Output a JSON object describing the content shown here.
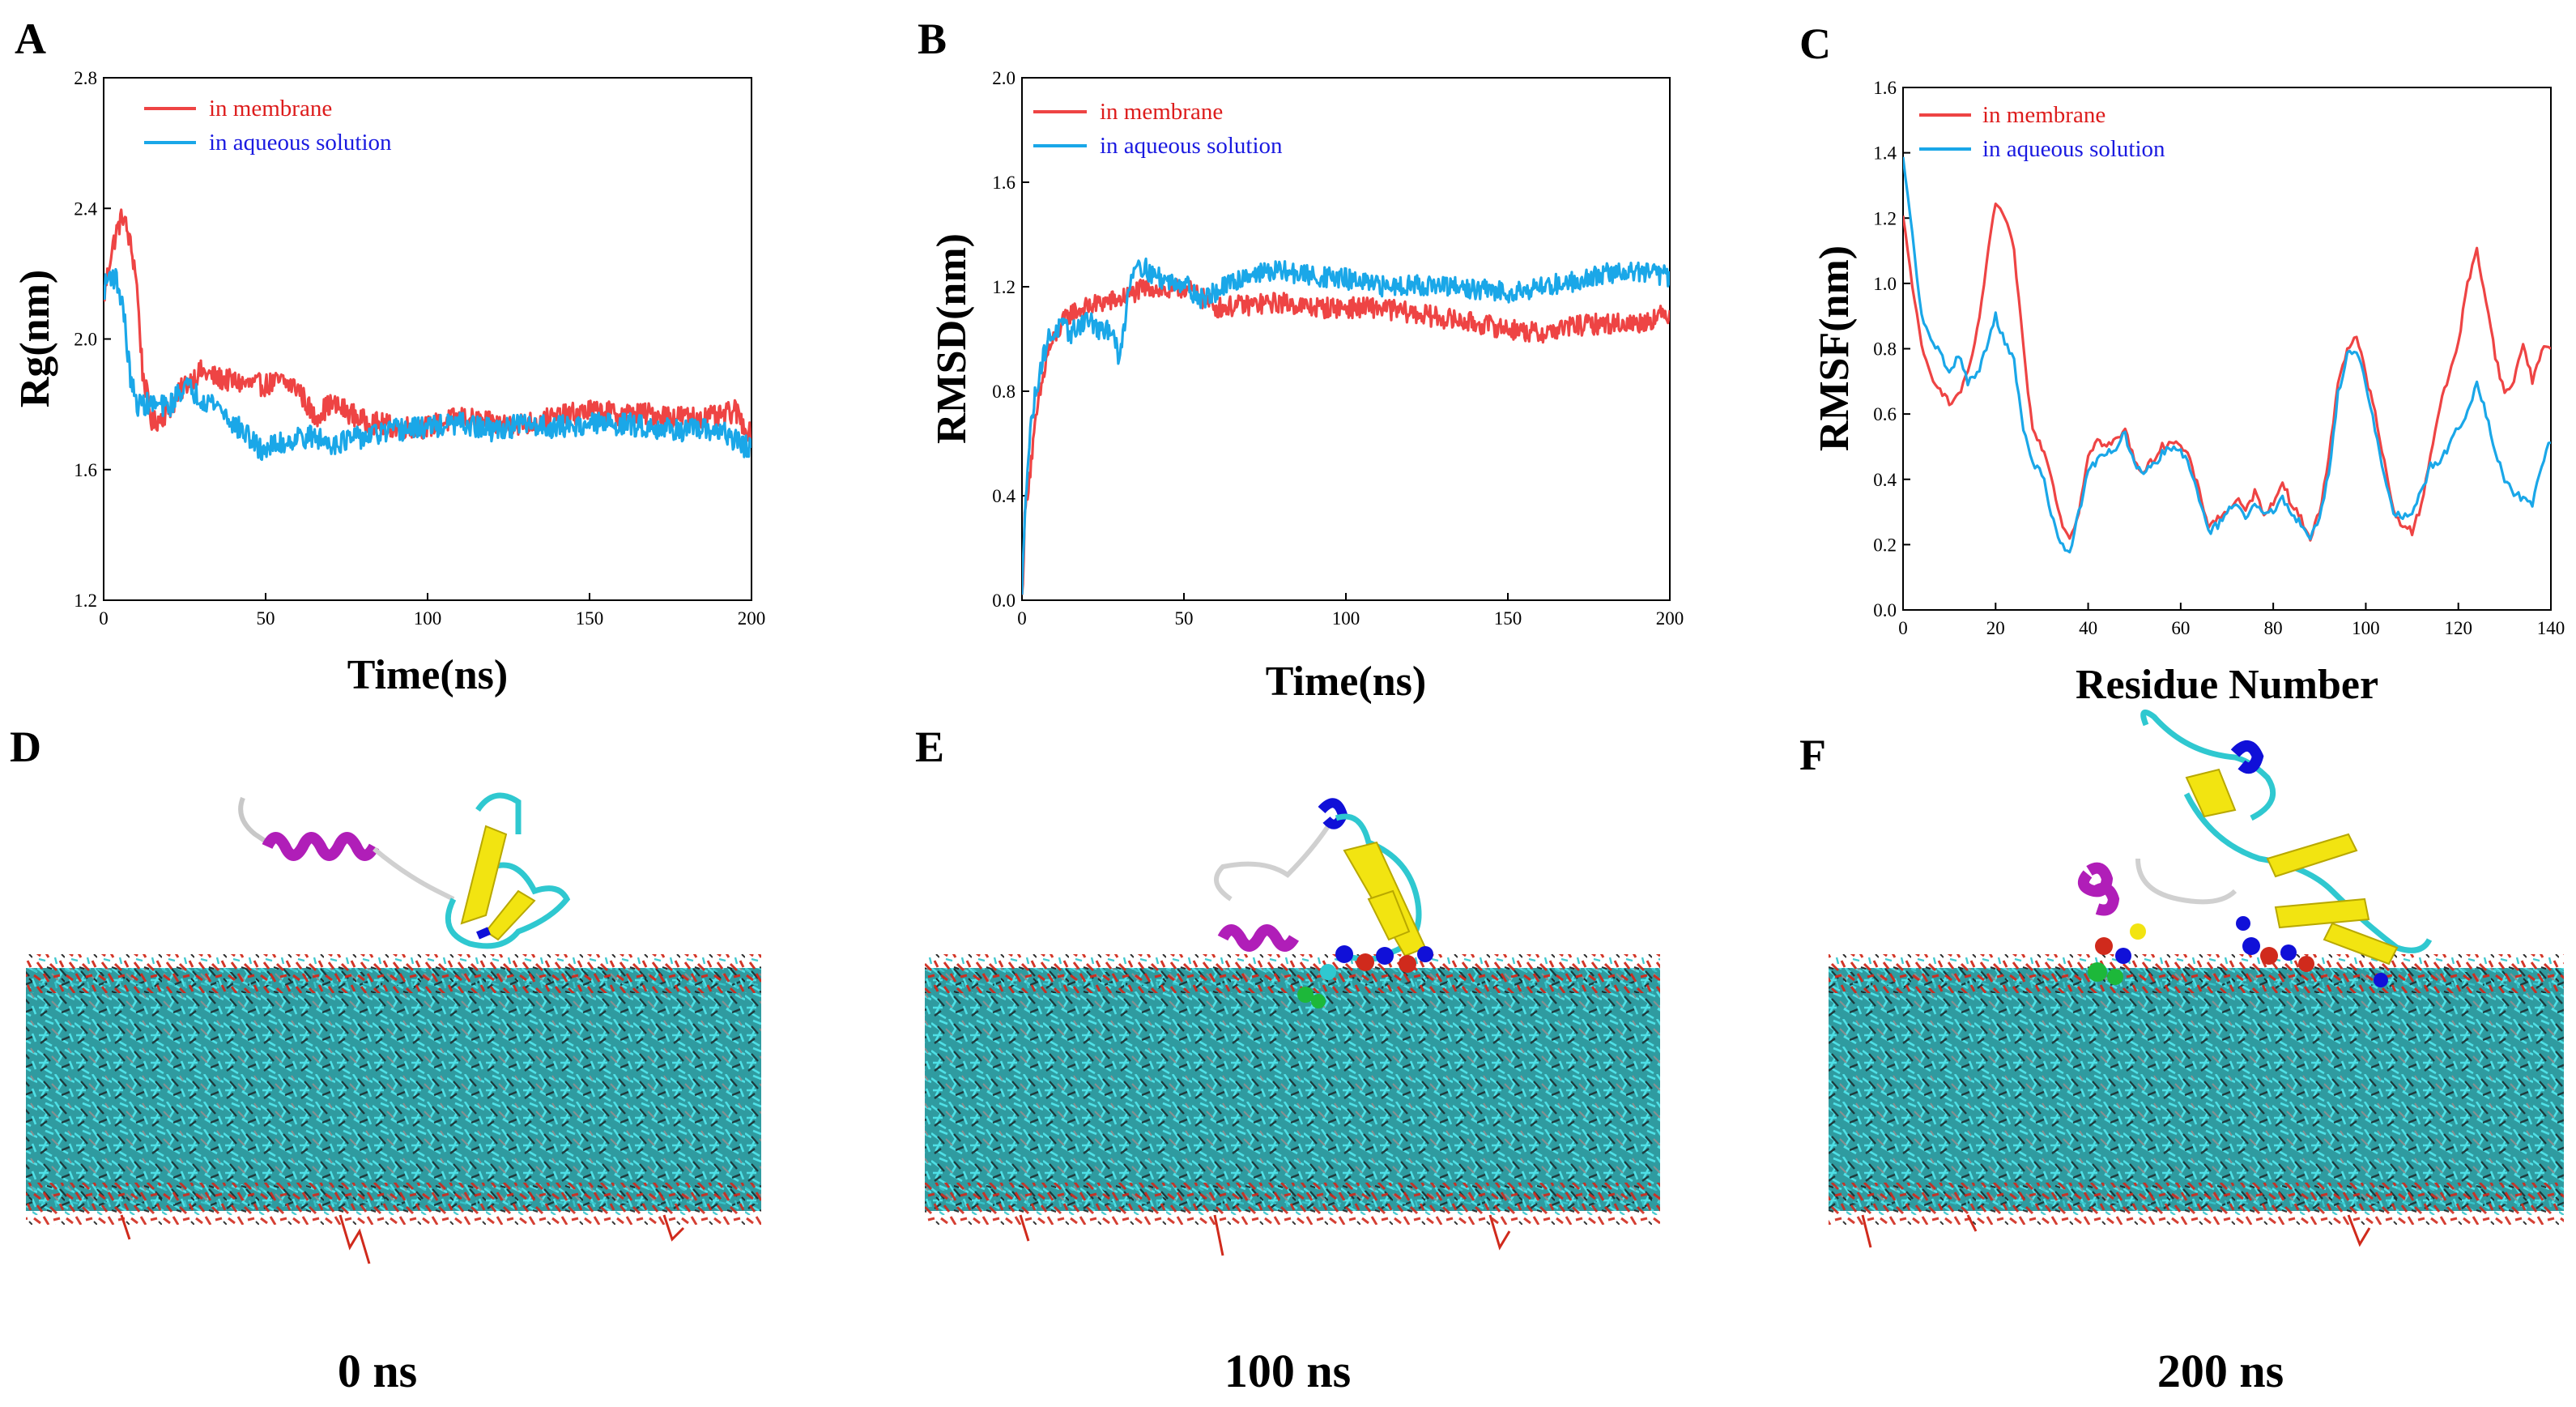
{
  "colors": {
    "membrane": "#ee4444",
    "aqueous": "#1aa7e8",
    "legend_text_membrane": "#dd1c1c",
    "legend_text_aqueous": "#1a1ae0",
    "water_teal": "#38c6cc",
    "lipid_red": "#d02a1c",
    "helix_magenta": "#b01eb8",
    "sheet_yellow": "#f2e411",
    "helix_blue": "#1010d8"
  },
  "chart_data": [
    {
      "id": "A",
      "type": "line",
      "title": "",
      "xlabel": "Time(ns)",
      "ylabel": "Rg(nm)",
      "xlim": [
        0,
        200
      ],
      "ylim": [
        1.2,
        2.8
      ],
      "xticks": [
        "0",
        "50",
        "100",
        "150",
        "200"
      ],
      "yticks": [
        "1.2",
        "1.6",
        "2.0",
        "2.4",
        "2.8"
      ],
      "legend": [
        "in membrane",
        "in aqueous solution"
      ],
      "series": [
        {
          "name": "in membrane",
          "x": [
            0,
            2,
            4,
            6,
            8,
            10,
            12,
            15,
            20,
            25,
            30,
            35,
            40,
            45,
            50,
            55,
            60,
            65,
            70,
            75,
            80,
            90,
            100,
            110,
            120,
            130,
            140,
            150,
            160,
            170,
            180,
            190,
            195,
            200
          ],
          "values": [
            2.12,
            2.25,
            2.33,
            2.38,
            2.3,
            2.2,
            1.9,
            1.74,
            1.78,
            1.86,
            1.9,
            1.88,
            1.87,
            1.86,
            1.86,
            1.87,
            1.85,
            1.76,
            1.8,
            1.78,
            1.75,
            1.73,
            1.73,
            1.76,
            1.74,
            1.74,
            1.76,
            1.78,
            1.77,
            1.77,
            1.76,
            1.76,
            1.78,
            1.7
          ],
          "noise": 0.035
        },
        {
          "name": "in aqueous solution",
          "x": [
            0,
            2,
            4,
            6,
            8,
            10,
            15,
            20,
            25,
            30,
            35,
            40,
            45,
            48,
            55,
            60,
            65,
            70,
            75,
            80,
            90,
            100,
            110,
            120,
            130,
            140,
            150,
            160,
            170,
            180,
            190,
            200
          ],
          "values": [
            2.15,
            2.2,
            2.18,
            2.1,
            1.9,
            1.8,
            1.8,
            1.79,
            1.86,
            1.82,
            1.8,
            1.74,
            1.7,
            1.66,
            1.68,
            1.7,
            1.7,
            1.68,
            1.69,
            1.7,
            1.72,
            1.73,
            1.74,
            1.72,
            1.74,
            1.73,
            1.74,
            1.74,
            1.73,
            1.72,
            1.72,
            1.66
          ],
          "noise": 0.035
        }
      ]
    },
    {
      "id": "B",
      "type": "line",
      "title": "",
      "xlabel": "Time(ns)",
      "ylabel": "RMSD(nm)",
      "xlim": [
        0,
        200
      ],
      "ylim": [
        0.0,
        2.0
      ],
      "xticks": [
        "0",
        "50",
        "100",
        "150",
        "200"
      ],
      "yticks": [
        "0.0",
        "0.4",
        "0.8",
        "1.2",
        "1.6",
        "2.0"
      ],
      "legend": [
        "in membrane",
        "in aqueous solution"
      ],
      "series": [
        {
          "name": "in membrane",
          "x": [
            0,
            1,
            3,
            5,
            8,
            12,
            15,
            20,
            25,
            30,
            35,
            40,
            45,
            50,
            60,
            70,
            80,
            90,
            100,
            110,
            120,
            130,
            140,
            150,
            160,
            170,
            180,
            190,
            200
          ],
          "values": [
            0.0,
            0.35,
            0.55,
            0.75,
            0.95,
            1.05,
            1.1,
            1.12,
            1.14,
            1.15,
            1.18,
            1.2,
            1.18,
            1.2,
            1.12,
            1.13,
            1.14,
            1.12,
            1.12,
            1.12,
            1.1,
            1.08,
            1.06,
            1.04,
            1.02,
            1.05,
            1.06,
            1.06,
            1.1
          ],
          "noise": 0.04
        },
        {
          "name": "in aqueous solution",
          "x": [
            0,
            1,
            3,
            5,
            8,
            12,
            15,
            20,
            25,
            28,
            30,
            33,
            35,
            40,
            45,
            50,
            55,
            60,
            70,
            80,
            90,
            100,
            110,
            120,
            130,
            140,
            150,
            160,
            170,
            180,
            190,
            200
          ],
          "values": [
            0.0,
            0.4,
            0.7,
            0.85,
            1.0,
            1.05,
            1.02,
            1.08,
            1.02,
            1.05,
            0.9,
            1.2,
            1.3,
            1.25,
            1.22,
            1.22,
            1.15,
            1.18,
            1.25,
            1.26,
            1.24,
            1.23,
            1.2,
            1.21,
            1.2,
            1.19,
            1.18,
            1.2,
            1.22,
            1.25,
            1.26,
            1.24
          ],
          "noise": 0.04
        }
      ]
    },
    {
      "id": "C",
      "type": "line",
      "title": "",
      "xlabel": "Residue Number",
      "ylabel": "RMSF(nm)",
      "xlim": [
        0,
        140
      ],
      "ylim": [
        0.0,
        1.6
      ],
      "xticks": [
        "0",
        "20",
        "40",
        "60",
        "80",
        "100",
        "120",
        "140"
      ],
      "yticks": [
        "0.0",
        "0.2",
        "0.4",
        "0.6",
        "0.8",
        "1.0",
        "1.2",
        "1.4",
        "1.6"
      ],
      "legend": [
        "in membrane",
        "in aqueous solution"
      ],
      "series": [
        {
          "name": "in membrane",
          "x": [
            0,
            2,
            4,
            6,
            8,
            10,
            12,
            14,
            16,
            18,
            20,
            22,
            24,
            26,
            28,
            30,
            32,
            34,
            36,
            38,
            40,
            42,
            44,
            46,
            48,
            50,
            52,
            54,
            56,
            58,
            60,
            62,
            64,
            66,
            68,
            70,
            72,
            74,
            76,
            78,
            80,
            82,
            84,
            86,
            88,
            90,
            92,
            94,
            96,
            98,
            100,
            102,
            104,
            106,
            108,
            110,
            112,
            114,
            116,
            118,
            120,
            122,
            124,
            126,
            128,
            130,
            132,
            134,
            136,
            138,
            140
          ],
          "values": [
            1.2,
            1.0,
            0.8,
            0.72,
            0.68,
            0.63,
            0.66,
            0.72,
            0.85,
            1.05,
            1.25,
            1.2,
            1.1,
            0.8,
            0.55,
            0.5,
            0.42,
            0.28,
            0.22,
            0.3,
            0.48,
            0.52,
            0.5,
            0.52,
            0.55,
            0.46,
            0.42,
            0.46,
            0.5,
            0.52,
            0.5,
            0.46,
            0.36,
            0.26,
            0.28,
            0.3,
            0.34,
            0.3,
            0.36,
            0.3,
            0.32,
            0.4,
            0.32,
            0.28,
            0.22,
            0.3,
            0.46,
            0.7,
            0.8,
            0.84,
            0.72,
            0.6,
            0.45,
            0.3,
            0.26,
            0.24,
            0.32,
            0.48,
            0.62,
            0.72,
            0.82,
            1.0,
            1.1,
            0.95,
            0.78,
            0.66,
            0.7,
            0.82,
            0.7,
            0.8,
            0.8
          ],
          "noise": 0.012
        },
        {
          "name": "in aqueous solution",
          "x": [
            0,
            2,
            4,
            6,
            8,
            10,
            12,
            14,
            16,
            18,
            20,
            22,
            24,
            26,
            28,
            30,
            32,
            34,
            36,
            38,
            40,
            42,
            44,
            46,
            48,
            50,
            52,
            54,
            56,
            58,
            60,
            62,
            64,
            66,
            68,
            70,
            72,
            74,
            76,
            78,
            80,
            82,
            84,
            86,
            88,
            90,
            92,
            94,
            96,
            98,
            100,
            102,
            104,
            106,
            108,
            110,
            112,
            114,
            116,
            118,
            120,
            122,
            124,
            126,
            128,
            130,
            132,
            134,
            136,
            138,
            140
          ],
          "values": [
            1.38,
            1.15,
            0.9,
            0.82,
            0.8,
            0.72,
            0.78,
            0.7,
            0.72,
            0.8,
            0.9,
            0.82,
            0.76,
            0.55,
            0.45,
            0.42,
            0.3,
            0.2,
            0.18,
            0.3,
            0.42,
            0.46,
            0.48,
            0.5,
            0.54,
            0.44,
            0.42,
            0.44,
            0.48,
            0.5,
            0.48,
            0.44,
            0.34,
            0.24,
            0.26,
            0.3,
            0.32,
            0.28,
            0.32,
            0.3,
            0.3,
            0.34,
            0.3,
            0.26,
            0.22,
            0.28,
            0.42,
            0.66,
            0.78,
            0.8,
            0.7,
            0.55,
            0.4,
            0.3,
            0.28,
            0.3,
            0.36,
            0.44,
            0.46,
            0.5,
            0.56,
            0.6,
            0.7,
            0.6,
            0.48,
            0.4,
            0.36,
            0.34,
            0.32,
            0.44,
            0.52
          ],
          "noise": 0.012
        }
      ]
    }
  ],
  "snapshots": [
    {
      "id": "D",
      "caption": "0 ns"
    },
    {
      "id": "E",
      "caption": "100 ns"
    },
    {
      "id": "F",
      "caption": "200 ns"
    }
  ]
}
